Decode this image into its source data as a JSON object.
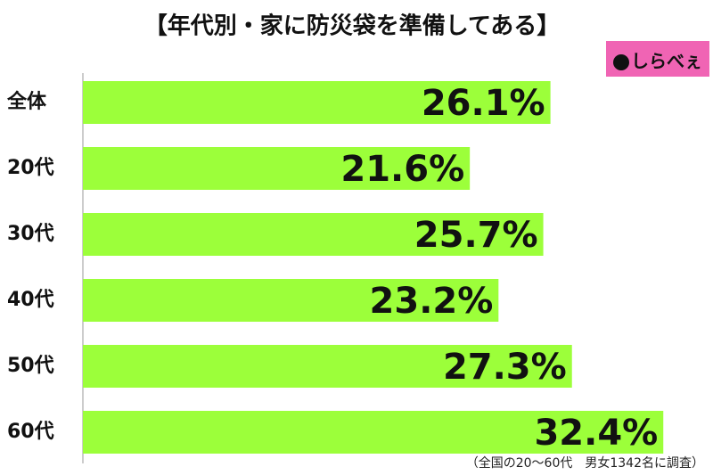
{
  "chart_data": {
    "type": "bar",
    "orientation": "horizontal",
    "title": "【年代別・家に防災袋を準備してある】",
    "categories": [
      "全体",
      "20代",
      "30代",
      "40代",
      "50代",
      "60代"
    ],
    "values": [
      26.1,
      21.6,
      25.7,
      23.2,
      27.3,
      32.4
    ],
    "value_labels": [
      "26.1%",
      "21.6%",
      "25.7%",
      "23.2%",
      "27.3%",
      "32.4%"
    ],
    "color": "#9cff3a",
    "note": "（全国の20～60代　男女1342名に調査）",
    "logo": "しらべぇ"
  }
}
